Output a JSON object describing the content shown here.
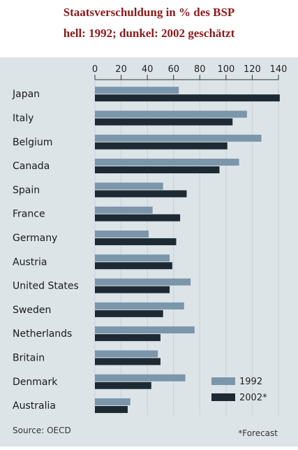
{
  "header": {
    "title_line1": "Staatsverschuldung in % des BSP",
    "title_line2": "hell: 1992; dunkel: 2002 geschätzt"
  },
  "chart_data": {
    "type": "bar",
    "orientation": "horizontal",
    "xlim": [
      0,
      140
    ],
    "xticks": [
      0,
      20,
      40,
      60,
      80,
      100,
      120,
      140
    ],
    "categories": [
      "Japan",
      "Italy",
      "Belgium",
      "Canada",
      "Spain",
      "France",
      "Germany",
      "Austria",
      "United States",
      "Sweden",
      "Netherlands",
      "Britain",
      "Denmark",
      "Australia"
    ],
    "series": [
      {
        "name": "1992",
        "color": "#7b96ab",
        "values": [
          64,
          116,
          127,
          110,
          52,
          44,
          41,
          57,
          73,
          68,
          76,
          48,
          69,
          27
        ]
      },
      {
        "name": "2002*",
        "color": "#1d2a33",
        "values": [
          141,
          105,
          101,
          95,
          70,
          65,
          62,
          59,
          57,
          52,
          50,
          50,
          43,
          25
        ]
      }
    ],
    "legend_position": "bottom-right",
    "grid": true,
    "source": "Source: OECD",
    "footnote": "*Forecast"
  }
}
